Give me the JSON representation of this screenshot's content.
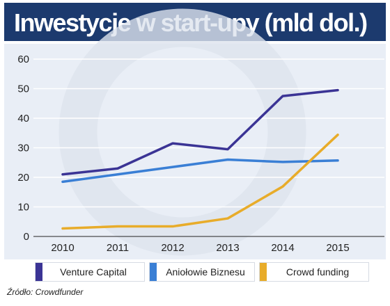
{
  "title": "Inwestycje w start-upy (mld dol.)",
  "source": "Źródło: Crowdfunder",
  "colors": {
    "title_bg": "#1c3a6e",
    "plot_bg": "#e9eef6",
    "grid": "#ffffff"
  },
  "chart_data": {
    "type": "line",
    "title": "Inwestycje w start-upy (mld dol.)",
    "xlabel": "",
    "ylabel": "",
    "x": [
      "2010",
      "2011",
      "2012",
      "2013",
      "2014",
      "2015"
    ],
    "ylim": [
      0,
      60
    ],
    "yticks": [
      "0",
      "10",
      "20",
      "30",
      "40",
      "50",
      "60"
    ],
    "grid": true,
    "legend_position": "bottom",
    "series": [
      {
        "name": "Venture Capital",
        "color": "#3b3495",
        "values": [
          21,
          23,
          31.5,
          29.5,
          47.5,
          49.5
        ]
      },
      {
        "name": "Aniołowie Biznesu",
        "color": "#3a7fd5",
        "values": [
          18.5,
          21,
          23.5,
          26,
          25.2,
          25.7
        ]
      },
      {
        "name": "Crowd funding",
        "color": "#e8ac2a",
        "values": [
          2.7,
          3.4,
          3.4,
          6.1,
          16.9,
          34.4
        ]
      }
    ]
  }
}
